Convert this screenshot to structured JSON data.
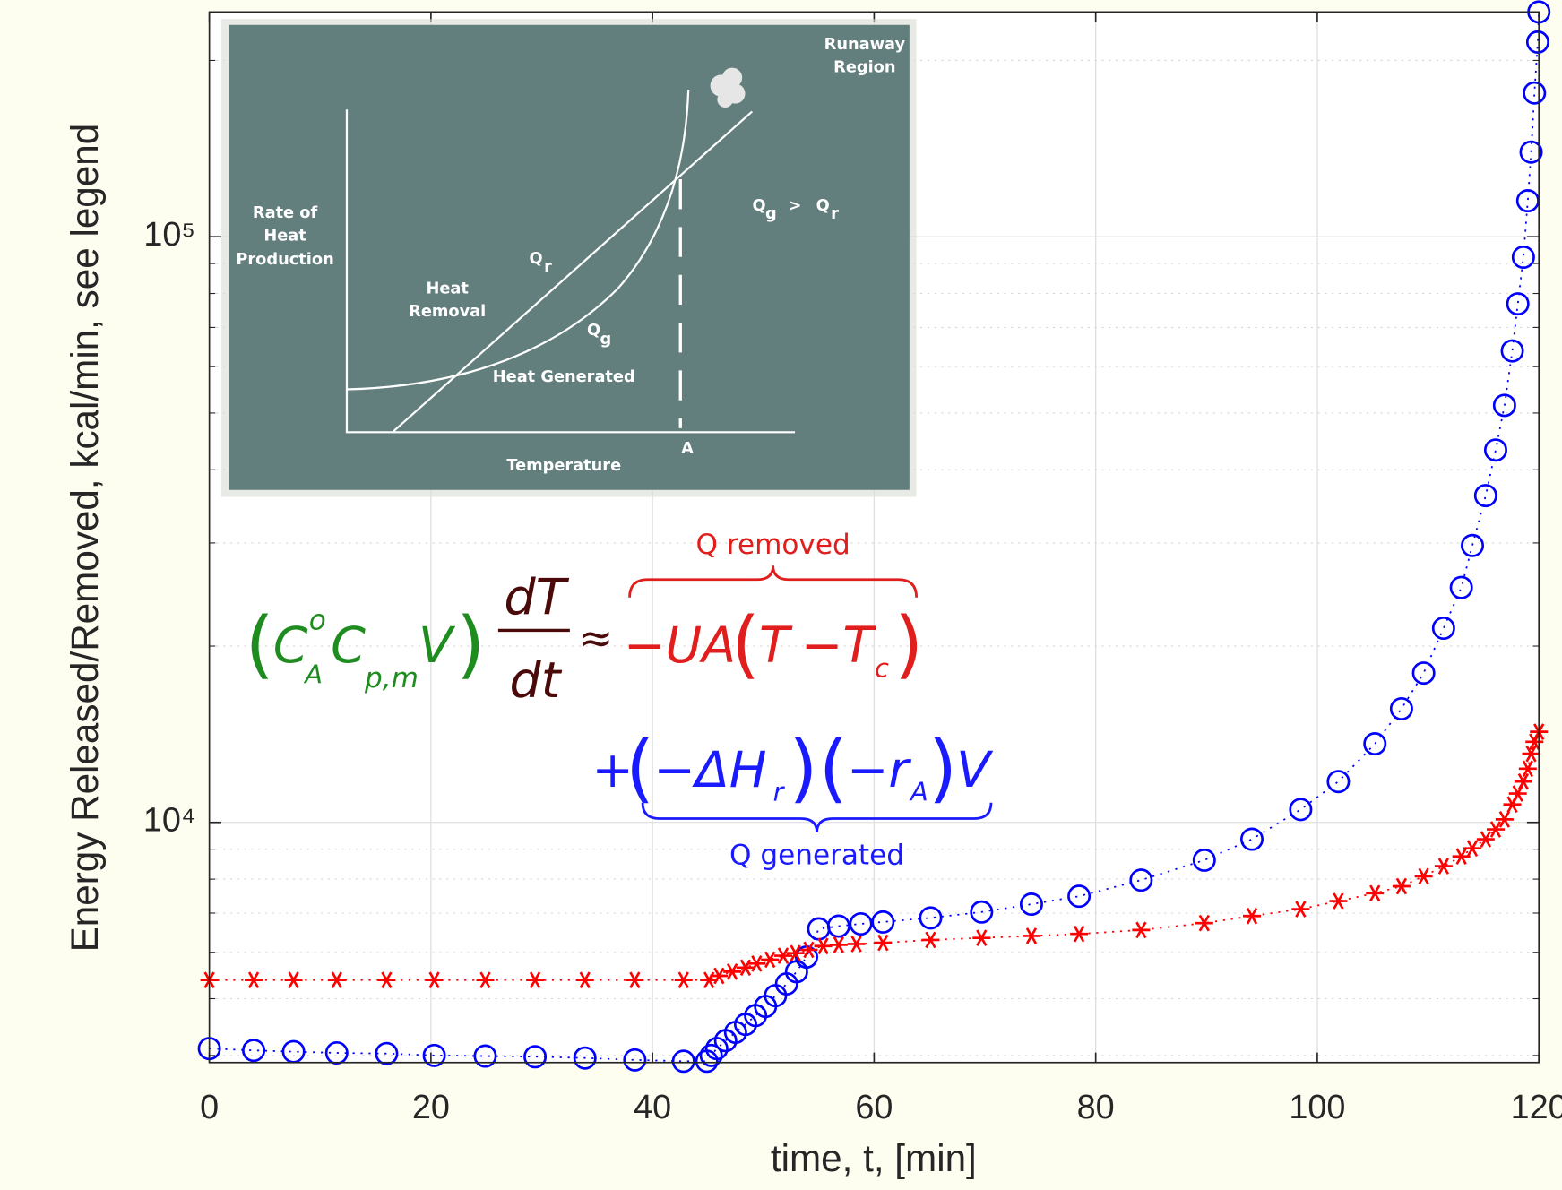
{
  "chart_data": {
    "type": "scatter",
    "x_label": "time, t, [min]",
    "y_label": "Energy Released/Removed, kcal/min, see legend",
    "xlim": [
      0,
      120
    ],
    "xticks": [
      0,
      20,
      40,
      60,
      80,
      100,
      120
    ],
    "ylim": [
      3890,
      242000
    ],
    "yscale": "log",
    "yticks": [
      {
        "value": 10000,
        "label": "10⁴"
      },
      {
        "value": 100000,
        "label": "10⁵"
      }
    ],
    "y_minor_ticks": [
      4000,
      5000,
      6000,
      7000,
      8000,
      9000,
      20000,
      30000,
      40000,
      50000,
      60000,
      70000,
      80000,
      90000,
      200000
    ],
    "grid": true,
    "series": [
      {
        "color": "#0000ff",
        "marker": "circle",
        "x": [
          0,
          4.0,
          7.6,
          11.5,
          16.0,
          20.3,
          24.9,
          29.4,
          33.9,
          38.4,
          42.8,
          44.9,
          45.3,
          45.8,
          46.6,
          47.5,
          48.4,
          49.3,
          50.2,
          51.1,
          52.1,
          53.0,
          53.9,
          55.0,
          56.8,
          58.8,
          60.8,
          65.1,
          69.7,
          74.2,
          78.5,
          84.1,
          89.8,
          94.1,
          98.5,
          101.9,
          105.2,
          107.6,
          109.6,
          111.4,
          113.0,
          114.0,
          115.2,
          116.1,
          116.9,
          117.6,
          118.1,
          118.6,
          119.0,
          119.3,
          119.6,
          119.9,
          120
        ],
        "values": [
          4110,
          4080,
          4060,
          4040,
          4030,
          4000,
          3990,
          3980,
          3960,
          3930,
          3910,
          3910,
          4000,
          4110,
          4240,
          4380,
          4520,
          4680,
          4850,
          5060,
          5300,
          5560,
          5890,
          6580,
          6650,
          6710,
          6760,
          6870,
          7030,
          7250,
          7480,
          7970,
          8620,
          9360,
          10520,
          11740,
          13620,
          15630,
          17990,
          21460,
          25180,
          29700,
          36140,
          43230,
          51530,
          63830,
          76810,
          92270,
          115200,
          139500,
          176000,
          215000,
          242000
        ]
      },
      {
        "color": "#ff0000",
        "marker": "star",
        "x": [
          0,
          4.0,
          7.6,
          11.5,
          16.0,
          20.3,
          24.9,
          29.4,
          33.9,
          38.4,
          42.8,
          45.1,
          46.0,
          47.2,
          48.4,
          49.4,
          50.6,
          51.8,
          52.9,
          54.1,
          55.4,
          56.8,
          58.4,
          60.8,
          65.1,
          69.7,
          74.2,
          78.5,
          84.1,
          89.8,
          94.1,
          98.5,
          101.9,
          105.2,
          107.6,
          109.6,
          111.4,
          113.0,
          114.0,
          115.2,
          116.1,
          116.9,
          117.6,
          118.1,
          118.6,
          119.0,
          119.3,
          119.6,
          120
        ],
        "values": [
          5380,
          5380,
          5380,
          5380,
          5380,
          5380,
          5380,
          5380,
          5380,
          5380,
          5380,
          5380,
          5470,
          5560,
          5650,
          5740,
          5830,
          5920,
          5980,
          6060,
          6150,
          6180,
          6200,
          6230,
          6300,
          6350,
          6400,
          6450,
          6550,
          6730,
          6920,
          7110,
          7340,
          7570,
          7780,
          8090,
          8420,
          8750,
          9030,
          9360,
          9730,
          10120,
          10730,
          11200,
          11740,
          12350,
          13100,
          13730,
          14280
        ]
      }
    ],
    "inset": {
      "runaway": [
        "Runaway",
        "Region"
      ],
      "y_axis": [
        "Rate of",
        "Heat",
        "Production"
      ],
      "removal": [
        "Heat",
        "Removal"
      ],
      "generated": "Heat Generated",
      "x_axis": "Temperature",
      "point": "A",
      "qr": [
        "Q",
        "r"
      ],
      "qg": [
        "Q",
        "g"
      ],
      "compare": [
        "Q",
        "g",
        ">",
        "Q",
        "r"
      ]
    },
    "equation": {
      "lhs": [
        "(",
        "C",
        "o",
        "A",
        "C",
        "p,m",
        "V",
        ")"
      ],
      "numerator": "dT",
      "denominator": "dt",
      "approx": "≈",
      "removed": [
        "−UA",
        "(",
        "T",
        "−",
        "T",
        "c",
        ")"
      ],
      "generated": [
        "+",
        "(",
        "−ΔH",
        "r",
        ")",
        "(",
        "−r",
        "A",
        ")",
        "V"
      ],
      "removed_label": "Q removed",
      "generated_label": "Q generated"
    }
  }
}
